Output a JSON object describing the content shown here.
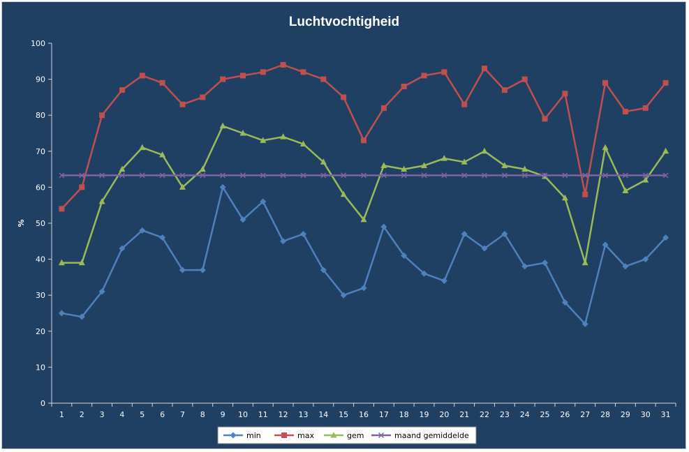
{
  "chart_data": {
    "type": "line",
    "title": "Luchtvochtigheid",
    "xlabel": "",
    "ylabel": "%",
    "ylim": [
      0,
      100
    ],
    "yticks": [
      0,
      10,
      20,
      30,
      40,
      50,
      60,
      70,
      80,
      90,
      100
    ],
    "categories": [
      "1",
      "2",
      "3",
      "4",
      "5",
      "6",
      "7",
      "8",
      "9",
      "10",
      "11",
      "12",
      "13",
      "14",
      "15",
      "16",
      "17",
      "18",
      "19",
      "20",
      "21",
      "22",
      "23",
      "24",
      "25",
      "26",
      "27",
      "28",
      "29",
      "30",
      "31"
    ],
    "grid": false,
    "legend": "bottom",
    "series": [
      {
        "name": "min",
        "color": "#4f81bd",
        "marker": "diamond",
        "values": [
          25,
          24,
          31,
          43,
          48,
          46,
          37,
          37,
          60,
          51,
          56,
          45,
          47,
          37,
          30,
          32,
          49,
          41,
          36,
          34,
          47,
          43,
          47,
          38,
          39,
          28,
          22,
          44,
          38,
          40,
          46
        ]
      },
      {
        "name": "max",
        "color": "#c0504d",
        "marker": "square",
        "values": [
          54,
          60,
          80,
          87,
          91,
          89,
          83,
          85,
          90,
          91,
          92,
          94,
          92,
          90,
          85,
          73,
          82,
          88,
          91,
          92,
          83,
          93,
          87,
          90,
          79,
          86,
          58,
          89,
          81,
          82,
          89
        ]
      },
      {
        "name": "gem",
        "color": "#9bbb59",
        "marker": "triangle",
        "values": [
          39,
          39,
          56,
          65,
          71,
          69,
          60,
          65,
          77,
          75,
          73,
          74,
          72,
          67,
          58,
          51,
          66,
          65,
          66,
          68,
          67,
          70,
          66,
          65,
          63,
          57,
          39,
          71,
          59,
          62,
          70
        ]
      },
      {
        "name": "maand gemiddelde",
        "color": "#8064a2",
        "marker": "x",
        "values": [
          63.3,
          63.3,
          63.3,
          63.3,
          63.3,
          63.3,
          63.3,
          63.3,
          63.3,
          63.3,
          63.3,
          63.3,
          63.3,
          63.3,
          63.3,
          63.3,
          63.3,
          63.3,
          63.3,
          63.3,
          63.3,
          63.3,
          63.3,
          63.3,
          63.3,
          63.3,
          63.3,
          63.3,
          63.3,
          63.3,
          63.3
        ]
      }
    ]
  }
}
